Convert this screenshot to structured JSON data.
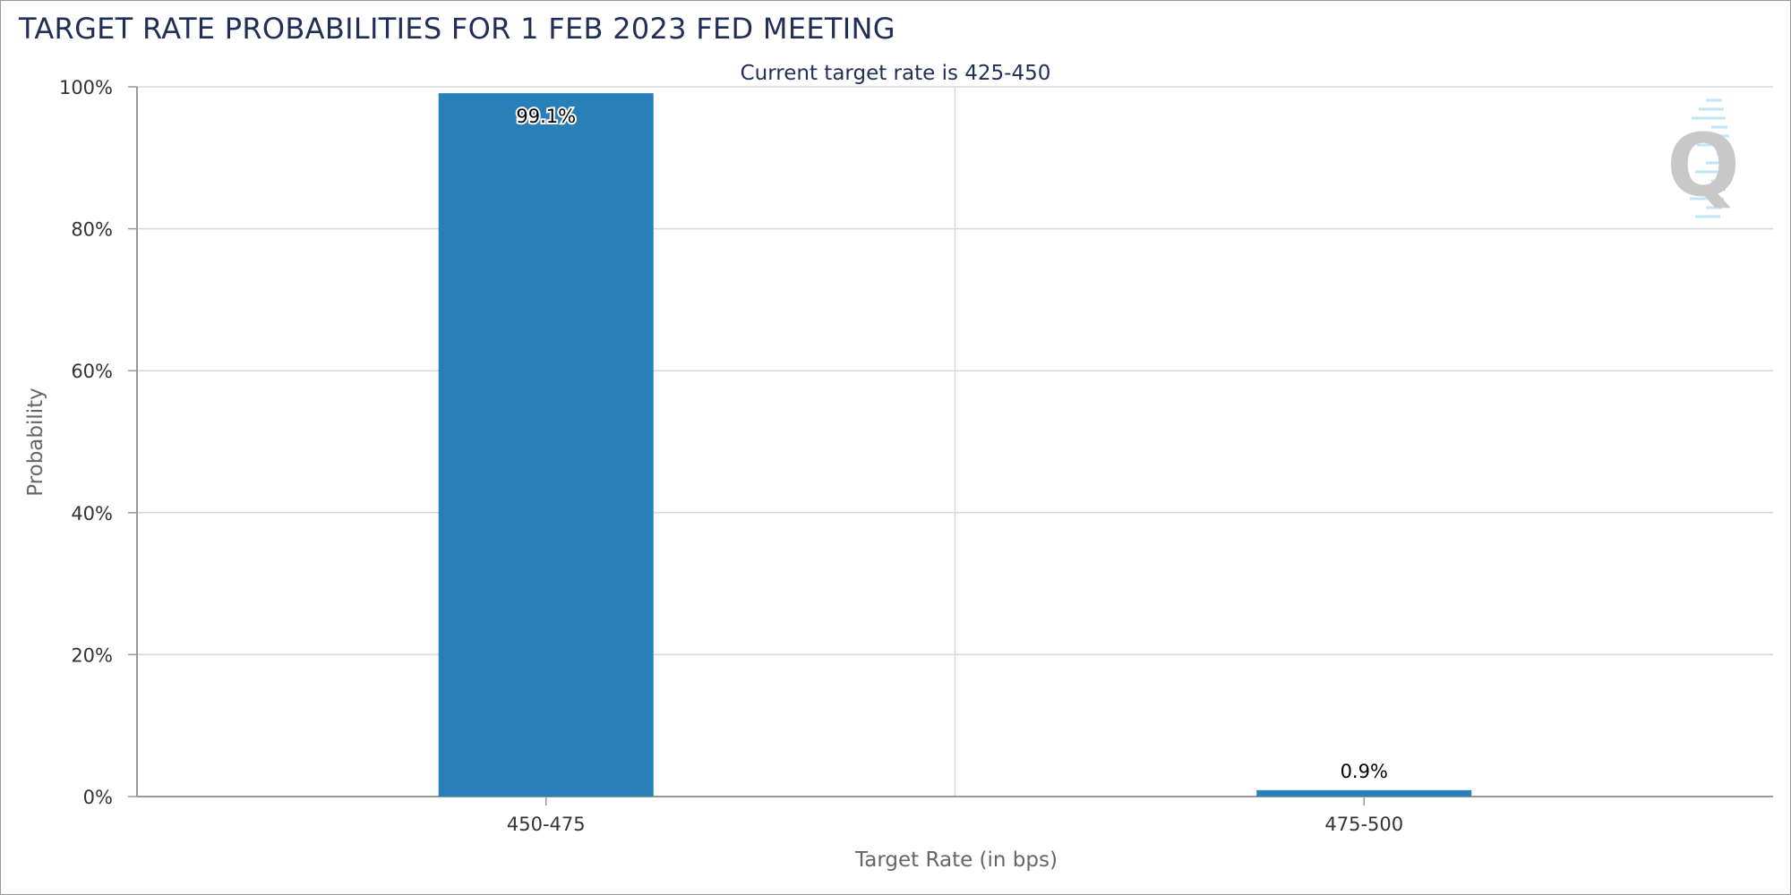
{
  "chart_data": {
    "type": "bar",
    "title": "TARGET RATE PROBABILITIES FOR 1 FEB 2023 FED MEETING",
    "subtitle": "Current target rate is 425-450",
    "xlabel": "Target Rate (in bps)",
    "ylabel": "Probability",
    "categories": [
      "450-475",
      "475-500"
    ],
    "values": [
      99.1,
      0.9
    ],
    "data_labels": [
      "99.1%",
      "0.9%"
    ],
    "ylim": [
      0,
      100
    ],
    "yticks": [
      0,
      20,
      40,
      60,
      80,
      100
    ],
    "ytick_labels": [
      "0%",
      "20%",
      "40%",
      "60%",
      "80%",
      "100%"
    ],
    "grid": true,
    "legend": "none",
    "bar_color": "#2980b9"
  },
  "colors": {
    "title": "#1f2f57",
    "grid": "#d8d8d8",
    "axis": "#999999",
    "watermark": "#c8c8c8"
  },
  "watermark_icon": "q-logo-icon"
}
